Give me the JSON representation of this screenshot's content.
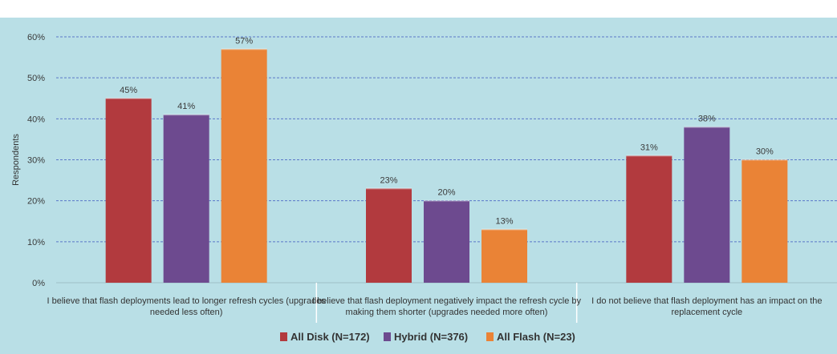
{
  "chart_data": {
    "type": "bar",
    "ylabel": "Respondents",
    "ylim": [
      0,
      60
    ],
    "yticks": [
      "0%",
      "10%",
      "20%",
      "30%",
      "40%",
      "50%",
      "60%"
    ],
    "grid": true,
    "legend_position": "bottom",
    "categories": [
      [
        "I believe that flash deployments lead to longer refresh cycles (upgrades",
        "needed less often)"
      ],
      [
        "I believe that flash deployment negatively impact the refresh cycle by",
        "making them shorter (upgrades needed more often)"
      ],
      [
        "I do not believe that flash deployment has an impact on the",
        "replacement cycle"
      ]
    ],
    "series": [
      {
        "name": "All Disk (N=172)",
        "color": "#b23a3e",
        "values": [
          45,
          23,
          31
        ],
        "labels": [
          "45%",
          "23%",
          "31%"
        ]
      },
      {
        "name": "Hybrid (N=376)",
        "color": "#6d4a8f",
        "values": [
          41,
          20,
          38
        ],
        "labels": [
          "41%",
          "20%",
          "38%"
        ]
      },
      {
        "name": "All Flash (N=23)",
        "color": "#ea8336",
        "values": [
          57,
          13,
          30
        ],
        "labels": [
          "57%",
          "13%",
          "30%"
        ]
      }
    ]
  }
}
